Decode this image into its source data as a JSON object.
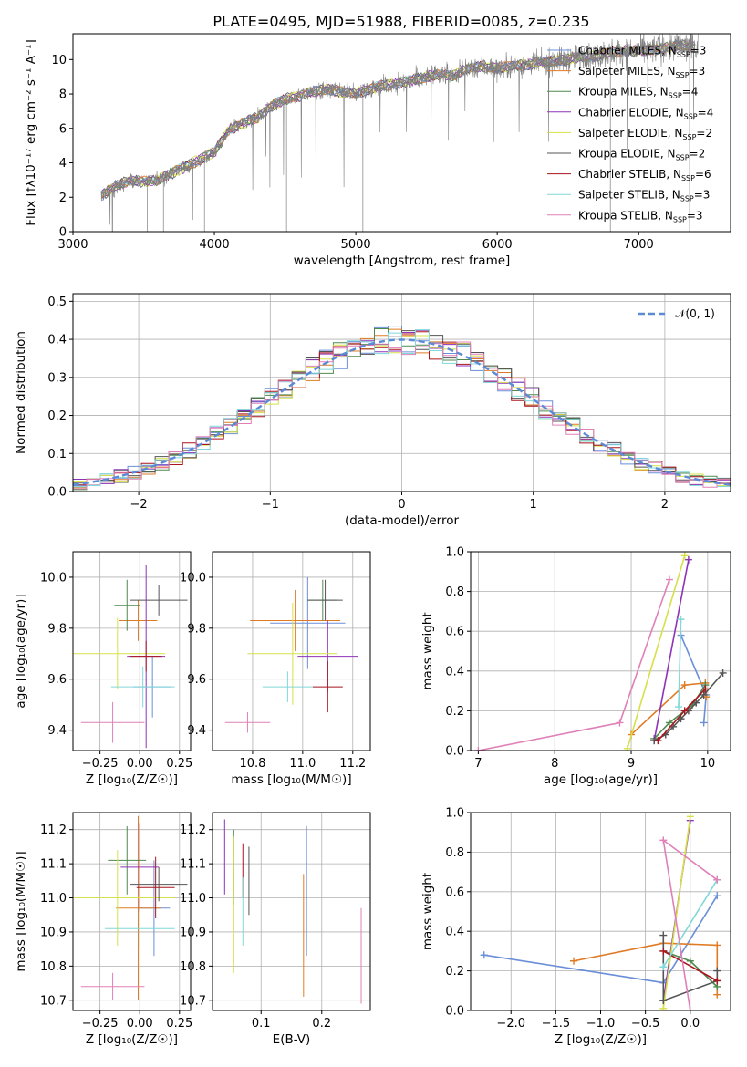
{
  "figure": {
    "title": "PLATE=0495, MJD=51988, FIBERID=0085, z=0.235"
  },
  "colors": [
    "#6a8fd8",
    "#e07b25",
    "#4e8a4e",
    "#8e33b8",
    "#d6e048",
    "#555555",
    "#a8151d",
    "#80d8d8",
    "#e080b8",
    "#808080"
  ],
  "chart_data": [
    {
      "id": "spectrum",
      "type": "line",
      "xlabel": "wavelength [Angstrom, rest frame]",
      "ylabel": "Flux [fλ10⁻¹⁷ erg cm⁻² s⁻¹ A⁻¹]",
      "xlim": [
        3000,
        7650
      ],
      "ylim": [
        0,
        11.5
      ],
      "xticks": [
        "3000",
        "4000",
        "5000",
        "6000",
        "7000"
      ],
      "yticks": [
        "0",
        "2",
        "4",
        "6",
        "8",
        "10"
      ],
      "legend_position": "upper-right",
      "legend": [
        {
          "label": "Chabrier MILES, N",
          "sub": "SSP",
          "val": "=3"
        },
        {
          "label": "Salpeter MILES, N",
          "sub": "SSP",
          "val": "=3"
        },
        {
          "label": "Kroupa MILES, N",
          "sub": "SSP",
          "val": "=4"
        },
        {
          "label": "Chabrier ELODIE, N",
          "sub": "SSP",
          "val": "=4"
        },
        {
          "label": "Salpeter ELODIE, N",
          "sub": "SSP",
          "val": "=2"
        },
        {
          "label": "Kroupa ELODIE, N",
          "sub": "SSP",
          "val": "=2"
        },
        {
          "label": "Chabrier STELIB, N",
          "sub": "SSP",
          "val": "=6"
        },
        {
          "label": "Salpeter STELIB, N",
          "sub": "SSP",
          "val": "=3"
        },
        {
          "label": "Kroupa STELIB, N",
          "sub": "SSP",
          "val": "=3"
        }
      ],
      "continuum": {
        "x": [
          3200,
          3300,
          3400,
          3500,
          3600,
          3700,
          3800,
          3900,
          4000,
          4100,
          4200,
          4300,
          4400,
          4500,
          4600,
          4700,
          4800,
          4900,
          5000,
          5100,
          5200,
          5300,
          5400,
          5500,
          5600,
          5700,
          5800,
          5900,
          6000,
          6100,
          6200,
          6300,
          6400,
          6500,
          6600,
          6700,
          6800,
          6900,
          7000,
          7100,
          7200,
          7300,
          7400
        ],
        "y": [
          2.1,
          2.6,
          3.0,
          2.9,
          3.0,
          3.4,
          3.8,
          4.2,
          4.6,
          5.9,
          6.3,
          6.6,
          7.3,
          7.7,
          7.9,
          8.1,
          8.3,
          8.1,
          8.0,
          8.3,
          8.5,
          8.6,
          8.8,
          9.0,
          9.1,
          9.1,
          9.5,
          9.6,
          9.5,
          9.6,
          9.7,
          9.8,
          9.9,
          10.0,
          10.2,
          10.2,
          10.4,
          10.5,
          10.5,
          10.6,
          10.7,
          10.8,
          10.7
        ]
      }
    },
    {
      "id": "residuals",
      "type": "line",
      "xlabel": "(data-model)/error",
      "ylabel": "Normed distribution",
      "xlim": [
        -2.5,
        2.5
      ],
      "ylim": [
        0,
        0.52
      ],
      "xticks": [
        "−2",
        "−1",
        "0",
        "1",
        "2"
      ],
      "yticks": [
        "0.0",
        "0.1",
        "0.2",
        "0.3",
        "0.4",
        "0.5"
      ],
      "grid": true,
      "legend_position": "upper-right",
      "legend": [
        {
          "label": "𝒩(0, 1)"
        }
      ]
    },
    {
      "id": "age-vs-Z",
      "type": "scatter",
      "xlabel": "Z [log₁₀(Z/Z☉)]",
      "ylabel": "age  [log₁₀(age/yr)]",
      "xlim": [
        -0.42,
        0.32
      ],
      "ylim": [
        9.32,
        10.1
      ],
      "xticks": [
        "−0.25",
        "0.00",
        "0.25"
      ],
      "yticks": [
        "9.4",
        "9.6",
        "9.8",
        "10.0"
      ],
      "grid": true,
      "points": [
        {
          "x": 0.08,
          "y": 9.57,
          "xerr": 0.12,
          "yerr": 0.12
        },
        {
          "x": -0.01,
          "y": 9.83,
          "xerr": 0.12,
          "yerr": 0.08
        },
        {
          "x": -0.08,
          "y": 9.89,
          "xerr": 0.08,
          "yerr": 0.1
        },
        {
          "x": 0.04,
          "y": 9.69,
          "xerr": 0.12,
          "yerr": 0.36
        },
        {
          "x": -0.14,
          "y": 9.7,
          "xerr": 0.3,
          "yerr": 0.14
        },
        {
          "x": 0.12,
          "y": 9.91,
          "xerr": 0.18,
          "yerr": 0.06
        },
        {
          "x": 0.04,
          "y": 9.69,
          "xerr": 0.1,
          "yerr": 0.06
        },
        {
          "x": 0.02,
          "y": 9.57,
          "xerr": 0.2,
          "yerr": 0.08
        },
        {
          "x": -0.17,
          "y": 9.43,
          "xerr": 0.2,
          "yerr": 0.08
        }
      ]
    },
    {
      "id": "age-vs-mass",
      "type": "scatter",
      "xlabel": "mass [log₁₀(M/M☉)]",
      "ylabel": "",
      "xlim": [
        10.64,
        11.27
      ],
      "ylim": [
        9.32,
        10.1
      ],
      "xticks": [
        "10.8",
        "11.0",
        "11.2"
      ],
      "yticks": [
        "9.4",
        "9.6",
        "9.8",
        "10.0"
      ],
      "grid": true,
      "points": [
        {
          "x": 11.02,
          "y": 9.82,
          "xerr": 0.15,
          "yerr": 0.18
        },
        {
          "x": 10.97,
          "y": 9.83,
          "xerr": 0.18,
          "yerr": 0.12
        },
        {
          "x": 11.08,
          "y": 9.91,
          "xerr": 0.06,
          "yerr": 0.08
        },
        {
          "x": 11.1,
          "y": 9.69,
          "xerr": 0.12,
          "yerr": 0.14
        },
        {
          "x": 10.96,
          "y": 9.7,
          "xerr": 0.18,
          "yerr": 0.2
        },
        {
          "x": 11.09,
          "y": 9.91,
          "xerr": 0.07,
          "yerr": 0.08
        },
        {
          "x": 11.1,
          "y": 9.57,
          "xerr": 0.06,
          "yerr": 0.1
        },
        {
          "x": 10.94,
          "y": 9.57,
          "xerr": 0.1,
          "yerr": 0.06
        },
        {
          "x": 10.78,
          "y": 9.43,
          "xerr": 0.09,
          "yerr": 0.04
        }
      ]
    },
    {
      "id": "weight-vs-age",
      "type": "line",
      "xlabel": "age  [log₁₀(age/yr)]",
      "ylabel": "mass weight",
      "xlim": [
        6.9,
        10.3
      ],
      "ylim": [
        0,
        1
      ],
      "xticks": [
        "7",
        "8",
        "9",
        "10"
      ],
      "yticks": [
        "0.0",
        "0.2",
        "0.4",
        "0.6",
        "0.8",
        "1.0"
      ],
      "grid": true,
      "series": [
        {
          "x": [
            9.65,
            9.98,
            9.95
          ],
          "y": [
            0.58,
            0.28,
            0.14
          ]
        },
        {
          "x": [
            9.0,
            9.7,
            9.97,
            9.98
          ],
          "y": [
            0.08,
            0.33,
            0.34,
            0.27
          ]
        },
        {
          "x": [
            9.3,
            9.5,
            9.8,
            9.97
          ],
          "y": [
            0.06,
            0.14,
            0.23,
            0.33
          ]
        },
        {
          "x": [
            9.3,
            9.75
          ],
          "y": [
            0.05,
            0.96
          ]
        },
        {
          "x": [
            8.95,
            9.7
          ],
          "y": [
            0.01,
            0.98
          ]
        },
        {
          "x": [
            9.3,
            9.45,
            9.55,
            9.65,
            9.75,
            9.85,
            9.95,
            10.2
          ],
          "y": [
            0.05,
            0.08,
            0.12,
            0.16,
            0.2,
            0.24,
            0.28,
            0.39
          ]
        },
        {
          "x": [
            9.35,
            9.7,
            9.97
          ],
          "y": [
            0.05,
            0.2,
            0.31
          ]
        },
        {
          "x": [
            9.62,
            9.65
          ],
          "y": [
            0.22,
            0.66
          ]
        },
        {
          "x": [
            7.0,
            8.85,
            9.5
          ],
          "y": [
            0.0,
            0.14,
            0.86
          ]
        }
      ]
    },
    {
      "id": "mass-vs-Z",
      "type": "scatter",
      "xlabel": "Z [log₁₀(Z/Z☉)]",
      "ylabel": "mass [log₁₀(M/M☉)]",
      "xlim": [
        -0.42,
        0.32
      ],
      "ylim": [
        10.67,
        11.25
      ],
      "xticks": [
        "−0.25",
        "0.00",
        "0.25"
      ],
      "yticks": [
        "10.7",
        "10.8",
        "10.9",
        "11.0",
        "11.1",
        "11.2"
      ],
      "grid": true,
      "points": [
        {
          "x": 0.09,
          "y": 10.97,
          "xerr": 0.1,
          "yerr": 0.14
        },
        {
          "x": -0.01,
          "y": 10.97,
          "xerr": 0.14,
          "yerr": 0.27
        },
        {
          "x": -0.08,
          "y": 11.11,
          "xerr": 0.12,
          "yerr": 0.1
        },
        {
          "x": 0.0,
          "y": 11.09,
          "xerr": 0.12,
          "yerr": 0.13
        },
        {
          "x": -0.14,
          "y": 11.0,
          "xerr": 0.36,
          "yerr": 0.14
        },
        {
          "x": 0.12,
          "y": 11.04,
          "xerr": 0.18,
          "yerr": 0.05
        },
        {
          "x": 0.1,
          "y": 11.03,
          "xerr": 0.12,
          "yerr": 0.09
        },
        {
          "x": 0.0,
          "y": 10.91,
          "xerr": 0.22,
          "yerr": 0.06
        },
        {
          "x": -0.17,
          "y": 10.74,
          "xerr": 0.2,
          "yerr": 0.04
        }
      ]
    },
    {
      "id": "mass-vs-EBV",
      "type": "scatter",
      "xlabel": "E(B-V)",
      "ylabel": "",
      "xlim": [
        0.02,
        0.28
      ],
      "ylim": [
        10.67,
        11.25
      ],
      "xticks": [
        "0.1",
        "0.2"
      ],
      "yticks": [
        "10.7",
        "10.8",
        "10.9",
        "11.0",
        "11.1",
        "11.2"
      ],
      "grid": true,
      "points": [
        {
          "x": 0.175,
          "y": 11.02,
          "yerr": 0.19
        },
        {
          "x": 0.17,
          "y": 10.89,
          "yerr": 0.18
        },
        {
          "x": 0.055,
          "y": 11.09,
          "yerr": 0.11
        },
        {
          "x": 0.04,
          "y": 11.12,
          "yerr": 0.11
        },
        {
          "x": 0.055,
          "y": 10.98,
          "yerr": 0.2
        },
        {
          "x": 0.08,
          "y": 11.05,
          "yerr": 0.1
        },
        {
          "x": 0.07,
          "y": 11.08,
          "yerr": 0.08
        },
        {
          "x": 0.07,
          "y": 10.96,
          "yerr": 0.1
        },
        {
          "x": 0.265,
          "y": 10.83,
          "yerr": 0.14
        }
      ]
    },
    {
      "id": "weight-vs-Z",
      "type": "line",
      "xlabel": "Z [log₁₀(Z/Z☉)]",
      "ylabel": "mass weight",
      "xlim": [
        -2.45,
        0.45
      ],
      "ylim": [
        0,
        1
      ],
      "xticks": [
        "−2.0",
        "−1.5",
        "−1.0",
        "−0.5",
        "0.0"
      ],
      "yticks": [
        "0.0",
        "0.2",
        "0.4",
        "0.6",
        "0.8",
        "1.0"
      ],
      "grid": true,
      "series": [
        {
          "x": [
            -2.3,
            -0.3,
            0.3
          ],
          "y": [
            0.28,
            0.14,
            0.58
          ]
        },
        {
          "x": [
            -1.3,
            -0.3,
            0.3,
            0.3
          ],
          "y": [
            0.25,
            0.34,
            0.33,
            0.08
          ]
        },
        {
          "x": [
            -0.3,
            0.0,
            0.3
          ],
          "y": [
            0.3,
            0.25,
            0.12
          ]
        },
        {
          "x": [
            -0.3,
            0.0
          ],
          "y": [
            0.05,
            0.96
          ]
        },
        {
          "x": [
            -0.3,
            0.0
          ],
          "y": [
            0.01,
            0.98
          ]
        },
        {
          "x": [
            -0.3,
            -0.3,
            0.3,
            0.3
          ],
          "y": [
            0.38,
            0.05,
            0.15,
            0.2
          ]
        },
        {
          "x": [
            -0.3,
            0.3
          ],
          "y": [
            0.3,
            0.15
          ]
        },
        {
          "x": [
            -0.3,
            0.3
          ],
          "y": [
            0.22,
            0.66
          ]
        },
        {
          "x": [
            0.0,
            -0.3,
            0.3
          ],
          "y": [
            0.0,
            0.86,
            0.66
          ]
        }
      ]
    }
  ]
}
